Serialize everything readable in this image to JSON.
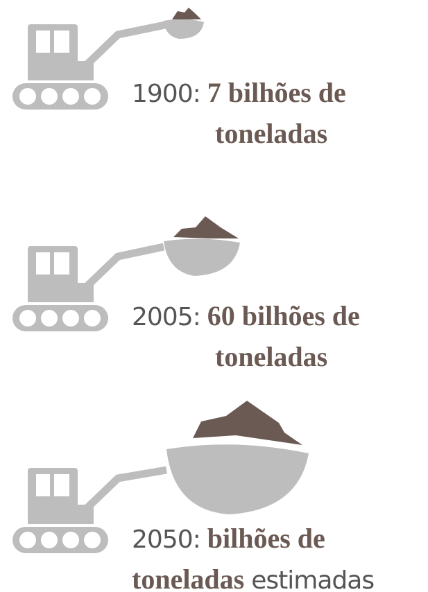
{
  "items": [
    {
      "year": "1900:",
      "amount": "7 bilhões de toneladas"
    },
    {
      "year": "2005:",
      "amount": "60 bilhões de toneladas"
    },
    {
      "year": "2050:",
      "amount": "bilhões de toneladas",
      "note": "estimadas"
    }
  ]
}
